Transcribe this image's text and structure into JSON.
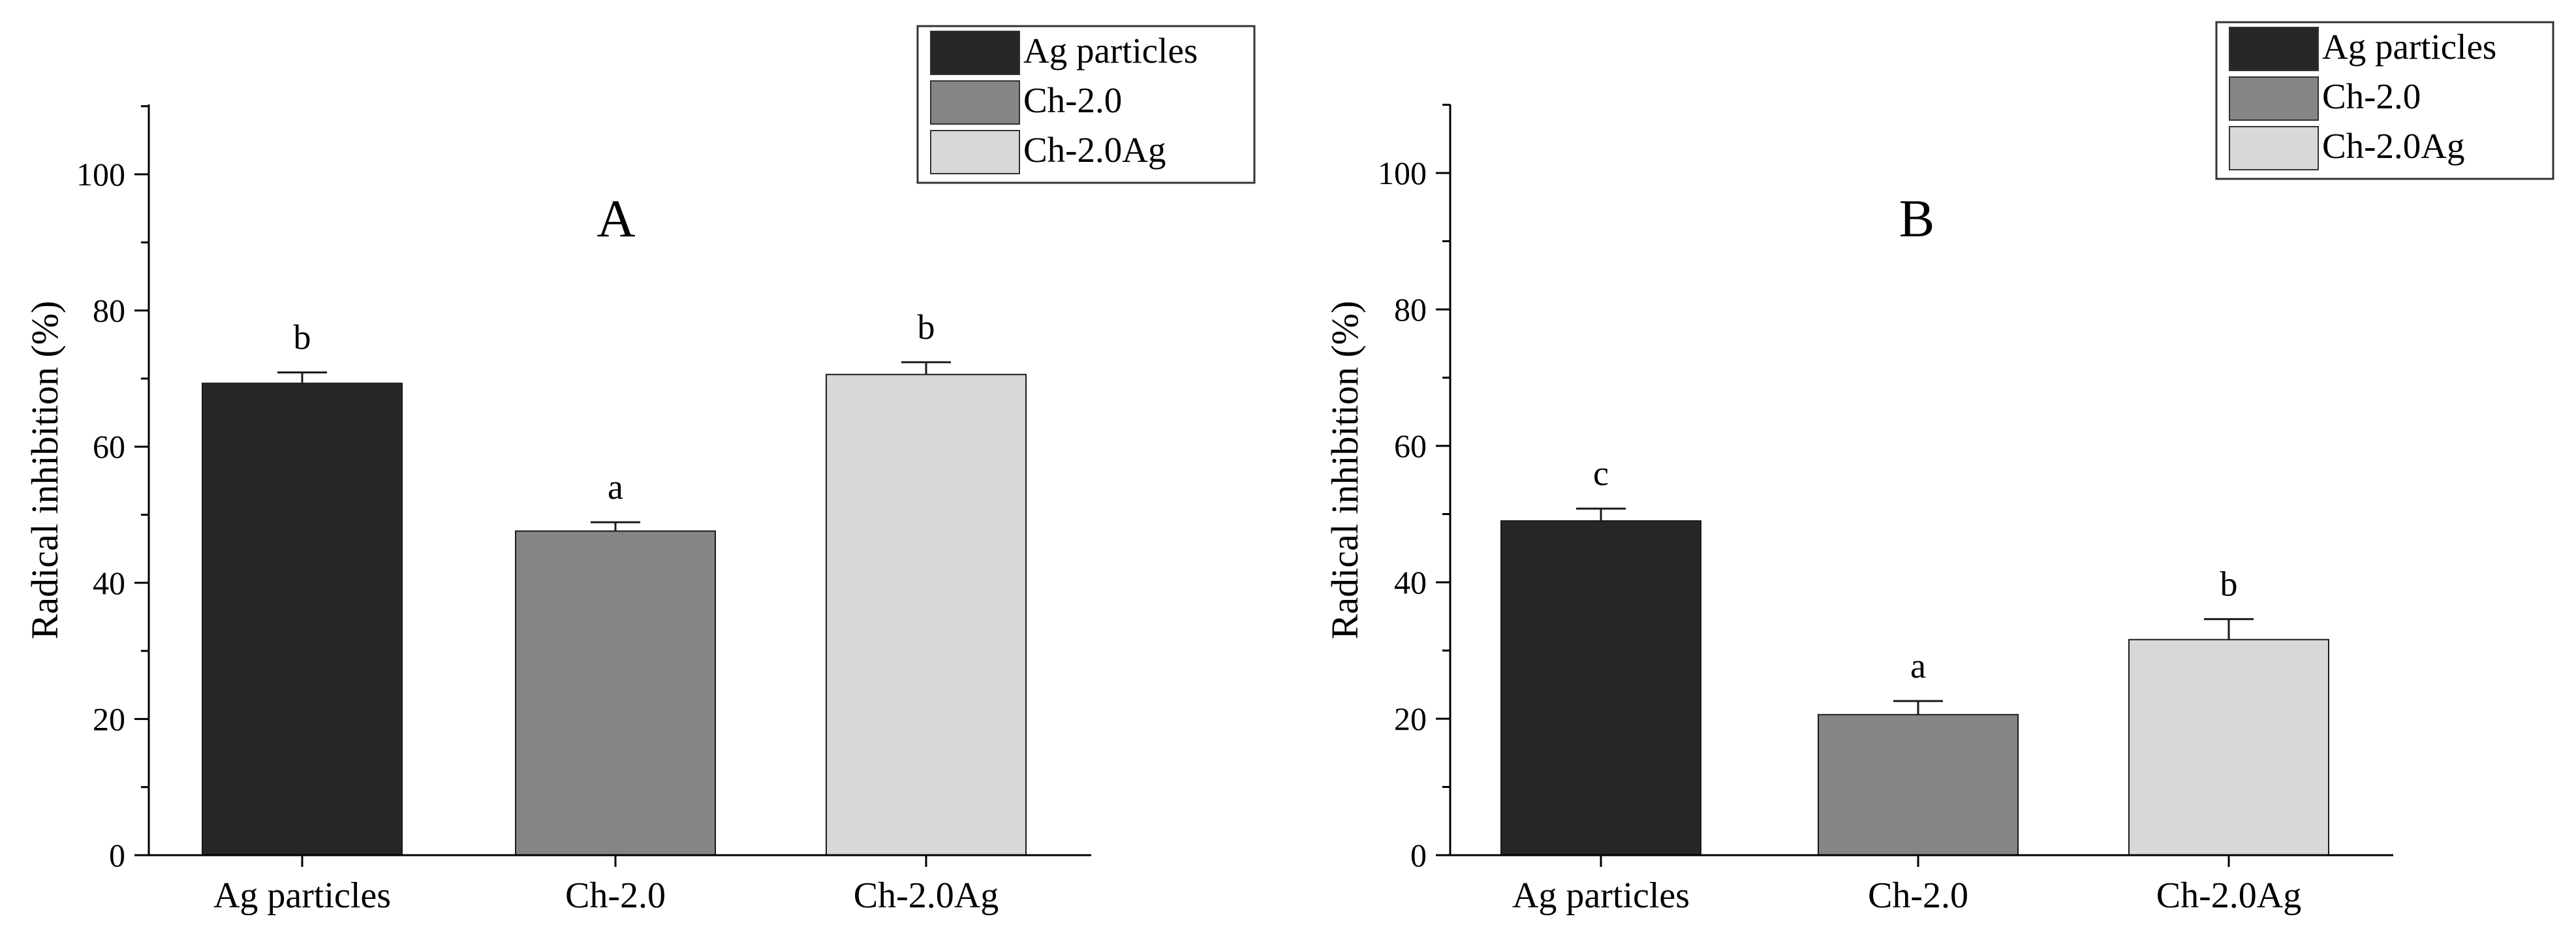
{
  "chart_data": [
    {
      "type": "bar",
      "title": "A",
      "ylabel": "Radical inhibition (%)",
      "xlabel": "",
      "ylim": [
        0,
        110
      ],
      "yticks": [
        0,
        20,
        40,
        60,
        80,
        100
      ],
      "categories": [
        "Ag particles",
        "Ch-2.0",
        "Ch-2.0Ag"
      ],
      "values": [
        69.3,
        47.6,
        70.6
      ],
      "errors": [
        1.6,
        1.3,
        1.8
      ],
      "significance_labels": [
        "b",
        "a",
        "b"
      ],
      "legend": {
        "placement": "top-right",
        "entries": [
          "Ag particles",
          "Ch-2.0",
          "Ch-2.0Ag"
        ]
      },
      "grid": false
    },
    {
      "type": "bar",
      "title": "B",
      "ylabel": "Radical inhibition (%)",
      "xlabel": "",
      "ylim": [
        0,
        110
      ],
      "yticks": [
        0,
        20,
        40,
        60,
        80,
        100
      ],
      "categories": [
        "Ag particles",
        "Ch-2.0",
        "Ch-2.0Ag"
      ],
      "values": [
        49.0,
        20.6,
        31.6
      ],
      "errors": [
        1.8,
        2.0,
        3.0
      ],
      "significance_labels": [
        "c",
        "a",
        "b"
      ],
      "legend": {
        "placement": "top-right",
        "entries": [
          "Ag particles",
          "Ch-2.0",
          "Ch-2.0Ag"
        ]
      },
      "grid": false
    }
  ],
  "colors": {
    "Ag particles": "#262626",
    "Ch-2.0": "#858585",
    "Ch-2.0Ag": "#d8d8d8"
  }
}
